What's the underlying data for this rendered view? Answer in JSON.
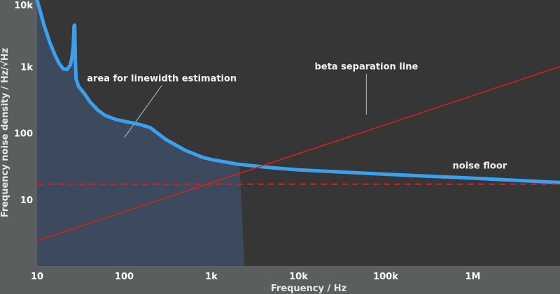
{
  "chart_data": {
    "type": "line",
    "xlabel": "Frequency / Hz",
    "ylabel": "Frequency noise density / Hz/√Hz",
    "xscale": "log",
    "yscale": "log",
    "xlim": [
      10,
      10000000
    ],
    "ylim": [
      1,
      10000
    ],
    "x_ticks": [
      {
        "value": 10,
        "label": "10"
      },
      {
        "value": 100,
        "label": "100"
      },
      {
        "value": 1000,
        "label": "1k"
      },
      {
        "value": 10000,
        "label": "10k"
      },
      {
        "value": 100000,
        "label": "100k"
      },
      {
        "value": 1000000,
        "label": "1M"
      }
    ],
    "y_ticks": [
      {
        "value": 10,
        "label": "10"
      },
      {
        "value": 100,
        "label": "100"
      },
      {
        "value": 1000,
        "label": "1k"
      },
      {
        "value": 10000,
        "label": "10k"
      }
    ],
    "grid": false,
    "series": [
      {
        "key": "noise",
        "color": "#3aa0f0",
        "x": [
          10,
          12,
          14,
          16,
          18,
          20,
          22,
          24,
          25,
          26,
          26.5,
          27,
          27.5,
          28,
          30,
          35,
          40,
          50,
          60,
          80,
          100,
          150,
          200,
          300,
          500,
          800,
          1000,
          2000,
          5000,
          10000,
          30000,
          100000,
          300000,
          1000000,
          3000000,
          10000000
        ],
        "y": [
          10000,
          4200,
          2300,
          1500,
          1100,
          920,
          900,
          1050,
          1300,
          2000,
          4000,
          4200,
          1200,
          650,
          500,
          390,
          300,
          220,
          185,
          160,
          150,
          135,
          120,
          80,
          55,
          43,
          40,
          34,
          30,
          28,
          26,
          24,
          22.5,
          21,
          19.5,
          18
        ]
      },
      {
        "key": "beta",
        "name": "beta separation line",
        "color": "#d62020",
        "x": [
          10,
          10000000
        ],
        "y": [
          2.4,
          1000
        ]
      },
      {
        "key": "floor",
        "name": "noise floor",
        "color": "#d62020",
        "dashed": true,
        "x": [
          10,
          10000000
        ],
        "y": [
          17,
          17
        ]
      }
    ],
    "shaded_region": {
      "label": "area for linewidth estimation",
      "x_end": 2100,
      "x_bottom": 2400,
      "fill": "#3d4a5e"
    },
    "annotations": [
      {
        "key": "area",
        "text": "area for linewidth estimation",
        "at": [
          270,
          600
        ],
        "target": [
          100,
          85
        ]
      },
      {
        "key": "beta",
        "text": "beta separation line",
        "at": [
          60000,
          900
        ],
        "target": [
          60000,
          190
        ]
      },
      {
        "key": "floor",
        "text": "noise floor",
        "at": [
          1200000,
          29
        ],
        "target": null
      }
    ]
  }
}
